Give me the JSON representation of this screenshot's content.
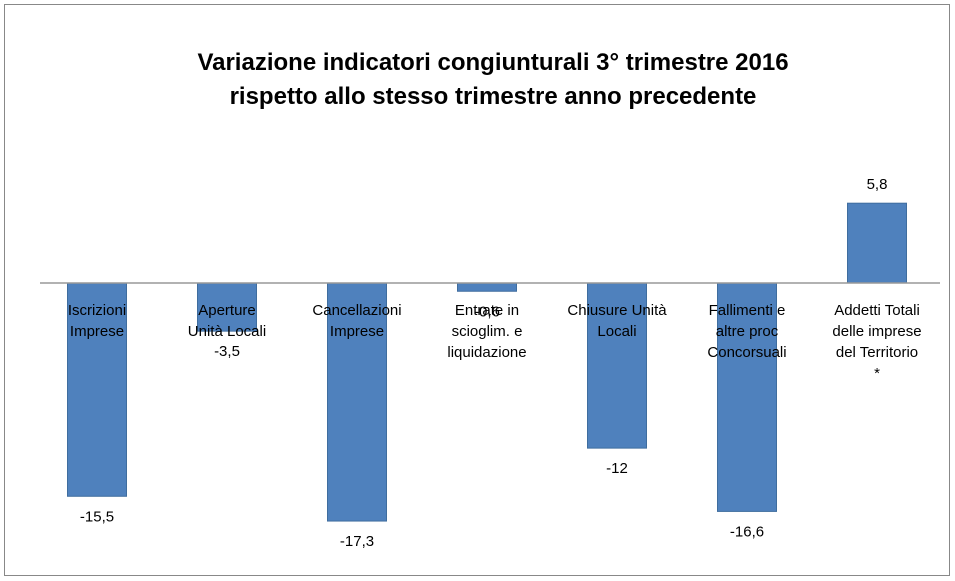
{
  "chart_data": {
    "type": "bar",
    "title": "Variazione indicatori congiunturali 3° trimestre 2016\nrispetto allo stesso trimestre anno precedente",
    "categories": [
      "Iscrizioni\nImprese",
      "Aperture\nUnità Locali",
      "Cancellazioni\nImprese",
      "Entrate in\nscioglim. e\nliquidazione",
      "Chiusure Unità\nLocali",
      "Fallimenti e\naltre proc\nConcorsuali",
      "Addetti Totali\ndelle imprese\ndel Territorio\n*"
    ],
    "values": [
      -15.5,
      -3.5,
      -17.3,
      -0.6,
      -12,
      -16.6,
      5.8
    ],
    "value_labels": [
      "-15,5",
      "-3,5",
      "-17,3",
      "-0,6",
      "-12",
      "-16,6",
      "5,8"
    ],
    "color": "#4f81bd"
  }
}
